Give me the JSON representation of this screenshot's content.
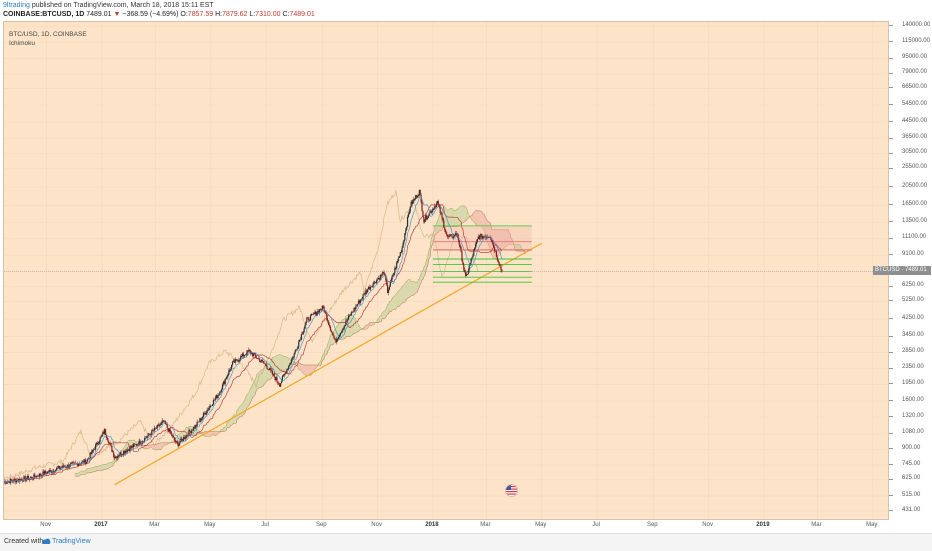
{
  "header": {
    "author": "9ltrading",
    "published_text": "published on TradingView.com, March 18, 2018 15:11 EST",
    "symbol_line_prefix": "COINBASE:BTCUSD, 1D",
    "price_text": "7489.01",
    "change_text": "−368.59 (−4.69%)",
    "open_label": "O:",
    "open_value": "7857.59",
    "high_label": "H:",
    "high_value": "7879.62",
    "low_label": "L:",
    "low_value": "7310.00",
    "close_label": "C:",
    "close_value": "7489.01"
  },
  "legend": {
    "pair": "BTC/USD, 1D, COINBASE",
    "indicator": "Ichimoku"
  },
  "price_tag": "BTCUSD · 7489.01",
  "footer": {
    "created_with": "Created with",
    "brand": "TradingView"
  },
  "colors": {
    "background": "#fde4c8",
    "tenkan": "#3a8fd0",
    "kijun": "#b03030",
    "chikou": "#c8a878",
    "cloud_bull": "#c9d3a0",
    "cloud_bear": "#efb8a8",
    "support_lines": "#36c836",
    "resistance_lines": "#e05050",
    "trendline": "#f5a623",
    "candle_up": "#2e2e2e",
    "candle_down": "#8b1a1a"
  },
  "chart_data": {
    "type": "candlestick",
    "scale": "log",
    "ylim": [
      431,
      140000
    ],
    "y_ticks": [
      "140000.00",
      "115000.00",
      "95000.00",
      "79000.00",
      "66500.00",
      "54500.00",
      "44500.00",
      "36500.00",
      "30500.00",
      "25500.00",
      "20500.00",
      "16500.00",
      "13500.00",
      "11100.00",
      "9100.00",
      "7489.01",
      "6250.00",
      "5250.00",
      "4250.00",
      "3450.00",
      "2850.00",
      "2350.00",
      "1950.00",
      "1600.00",
      "1320.00",
      "1080.00",
      "900.00",
      "745.00",
      "625.00",
      "515.00",
      "431.00"
    ],
    "x_ticks": [
      {
        "label": "Nov",
        "date": "2016-11-01",
        "year": false
      },
      {
        "label": "2017",
        "date": "2017-01-01",
        "year": true
      },
      {
        "label": "Mar",
        "date": "2017-03-01",
        "year": false
      },
      {
        "label": "May",
        "date": "2017-05-01",
        "year": false
      },
      {
        "label": "Jul",
        "date": "2017-07-01",
        "year": false
      },
      {
        "label": "Sep",
        "date": "2017-09-01",
        "year": false
      },
      {
        "label": "Nov",
        "date": "2017-11-01",
        "year": false
      },
      {
        "label": "2018",
        "date": "2018-01-01",
        "year": true
      },
      {
        "label": "Mar",
        "date": "2018-03-01",
        "year": false
      },
      {
        "label": "May",
        "date": "2018-05-01",
        "year": false
      },
      {
        "label": "Jul",
        "date": "2018-07-01",
        "year": false
      },
      {
        "label": "Sep",
        "date": "2018-09-01",
        "year": false
      },
      {
        "label": "Nov",
        "date": "2018-11-01",
        "year": false
      },
      {
        "label": "2019",
        "date": "2019-01-01",
        "year": true
      },
      {
        "label": "Mar",
        "date": "2019-03-01",
        "year": false
      },
      {
        "label": "May",
        "date": "2019-05-01",
        "year": false
      }
    ],
    "x_range": [
      "2016-09-15",
      "2019-05-20"
    ],
    "price_path": [
      {
        "date": "2016-09-15",
        "price": 610
      },
      {
        "date": "2016-10-15",
        "price": 640
      },
      {
        "date": "2016-11-15",
        "price": 720
      },
      {
        "date": "2016-12-15",
        "price": 780
      },
      {
        "date": "2017-01-04",
        "price": 1120
      },
      {
        "date": "2017-01-15",
        "price": 820
      },
      {
        "date": "2017-02-15",
        "price": 1000
      },
      {
        "date": "2017-03-10",
        "price": 1250
      },
      {
        "date": "2017-03-25",
        "price": 950
      },
      {
        "date": "2017-04-15",
        "price": 1200
      },
      {
        "date": "2017-05-10",
        "price": 1750
      },
      {
        "date": "2017-05-25",
        "price": 2500
      },
      {
        "date": "2017-06-12",
        "price": 2900
      },
      {
        "date": "2017-07-01",
        "price": 2450
      },
      {
        "date": "2017-07-16",
        "price": 1950
      },
      {
        "date": "2017-08-01",
        "price": 2800
      },
      {
        "date": "2017-08-15",
        "price": 4200
      },
      {
        "date": "2017-09-02",
        "price": 4900
      },
      {
        "date": "2017-09-15",
        "price": 3250
      },
      {
        "date": "2017-10-01",
        "price": 4400
      },
      {
        "date": "2017-10-20",
        "price": 6000
      },
      {
        "date": "2017-11-08",
        "price": 7400
      },
      {
        "date": "2017-11-12",
        "price": 5900
      },
      {
        "date": "2017-11-28",
        "price": 10000
      },
      {
        "date": "2017-12-07",
        "price": 16500
      },
      {
        "date": "2017-12-17",
        "price": 19500
      },
      {
        "date": "2017-12-22",
        "price": 13800
      },
      {
        "date": "2018-01-06",
        "price": 17100
      },
      {
        "date": "2018-01-17",
        "price": 11200
      },
      {
        "date": "2018-01-28",
        "price": 11700
      },
      {
        "date": "2018-02-06",
        "price": 6900
      },
      {
        "date": "2018-02-20",
        "price": 11300
      },
      {
        "date": "2018-03-05",
        "price": 11500
      },
      {
        "date": "2018-03-18",
        "price": 7489
      }
    ],
    "support_resistance_levels": [
      {
        "price": 12900,
        "kind": "support",
        "from": "2018-01-01",
        "to": "2018-04-20"
      },
      {
        "price": 10700,
        "kind": "resistance",
        "from": "2018-01-01",
        "to": "2018-04-20"
      },
      {
        "price": 9700,
        "kind": "resistance",
        "from": "2018-01-01",
        "to": "2018-04-20"
      },
      {
        "price": 8700,
        "kind": "support",
        "from": "2018-01-01",
        "to": "2018-04-20"
      },
      {
        "price": 8150,
        "kind": "support",
        "from": "2018-01-01",
        "to": "2018-04-20"
      },
      {
        "price": 7490,
        "kind": "support",
        "from": "2018-01-01",
        "to": "2018-04-20"
      },
      {
        "price": 7000,
        "kind": "support",
        "from": "2018-01-01",
        "to": "2018-04-20"
      },
      {
        "price": 6600,
        "kind": "support",
        "from": "2018-01-01",
        "to": "2018-04-20"
      }
    ],
    "trendline": [
      {
        "date": "2017-01-15",
        "price": 590
      },
      {
        "date": "2018-05-01",
        "price": 10500
      }
    ],
    "last_price": 7489.01
  }
}
